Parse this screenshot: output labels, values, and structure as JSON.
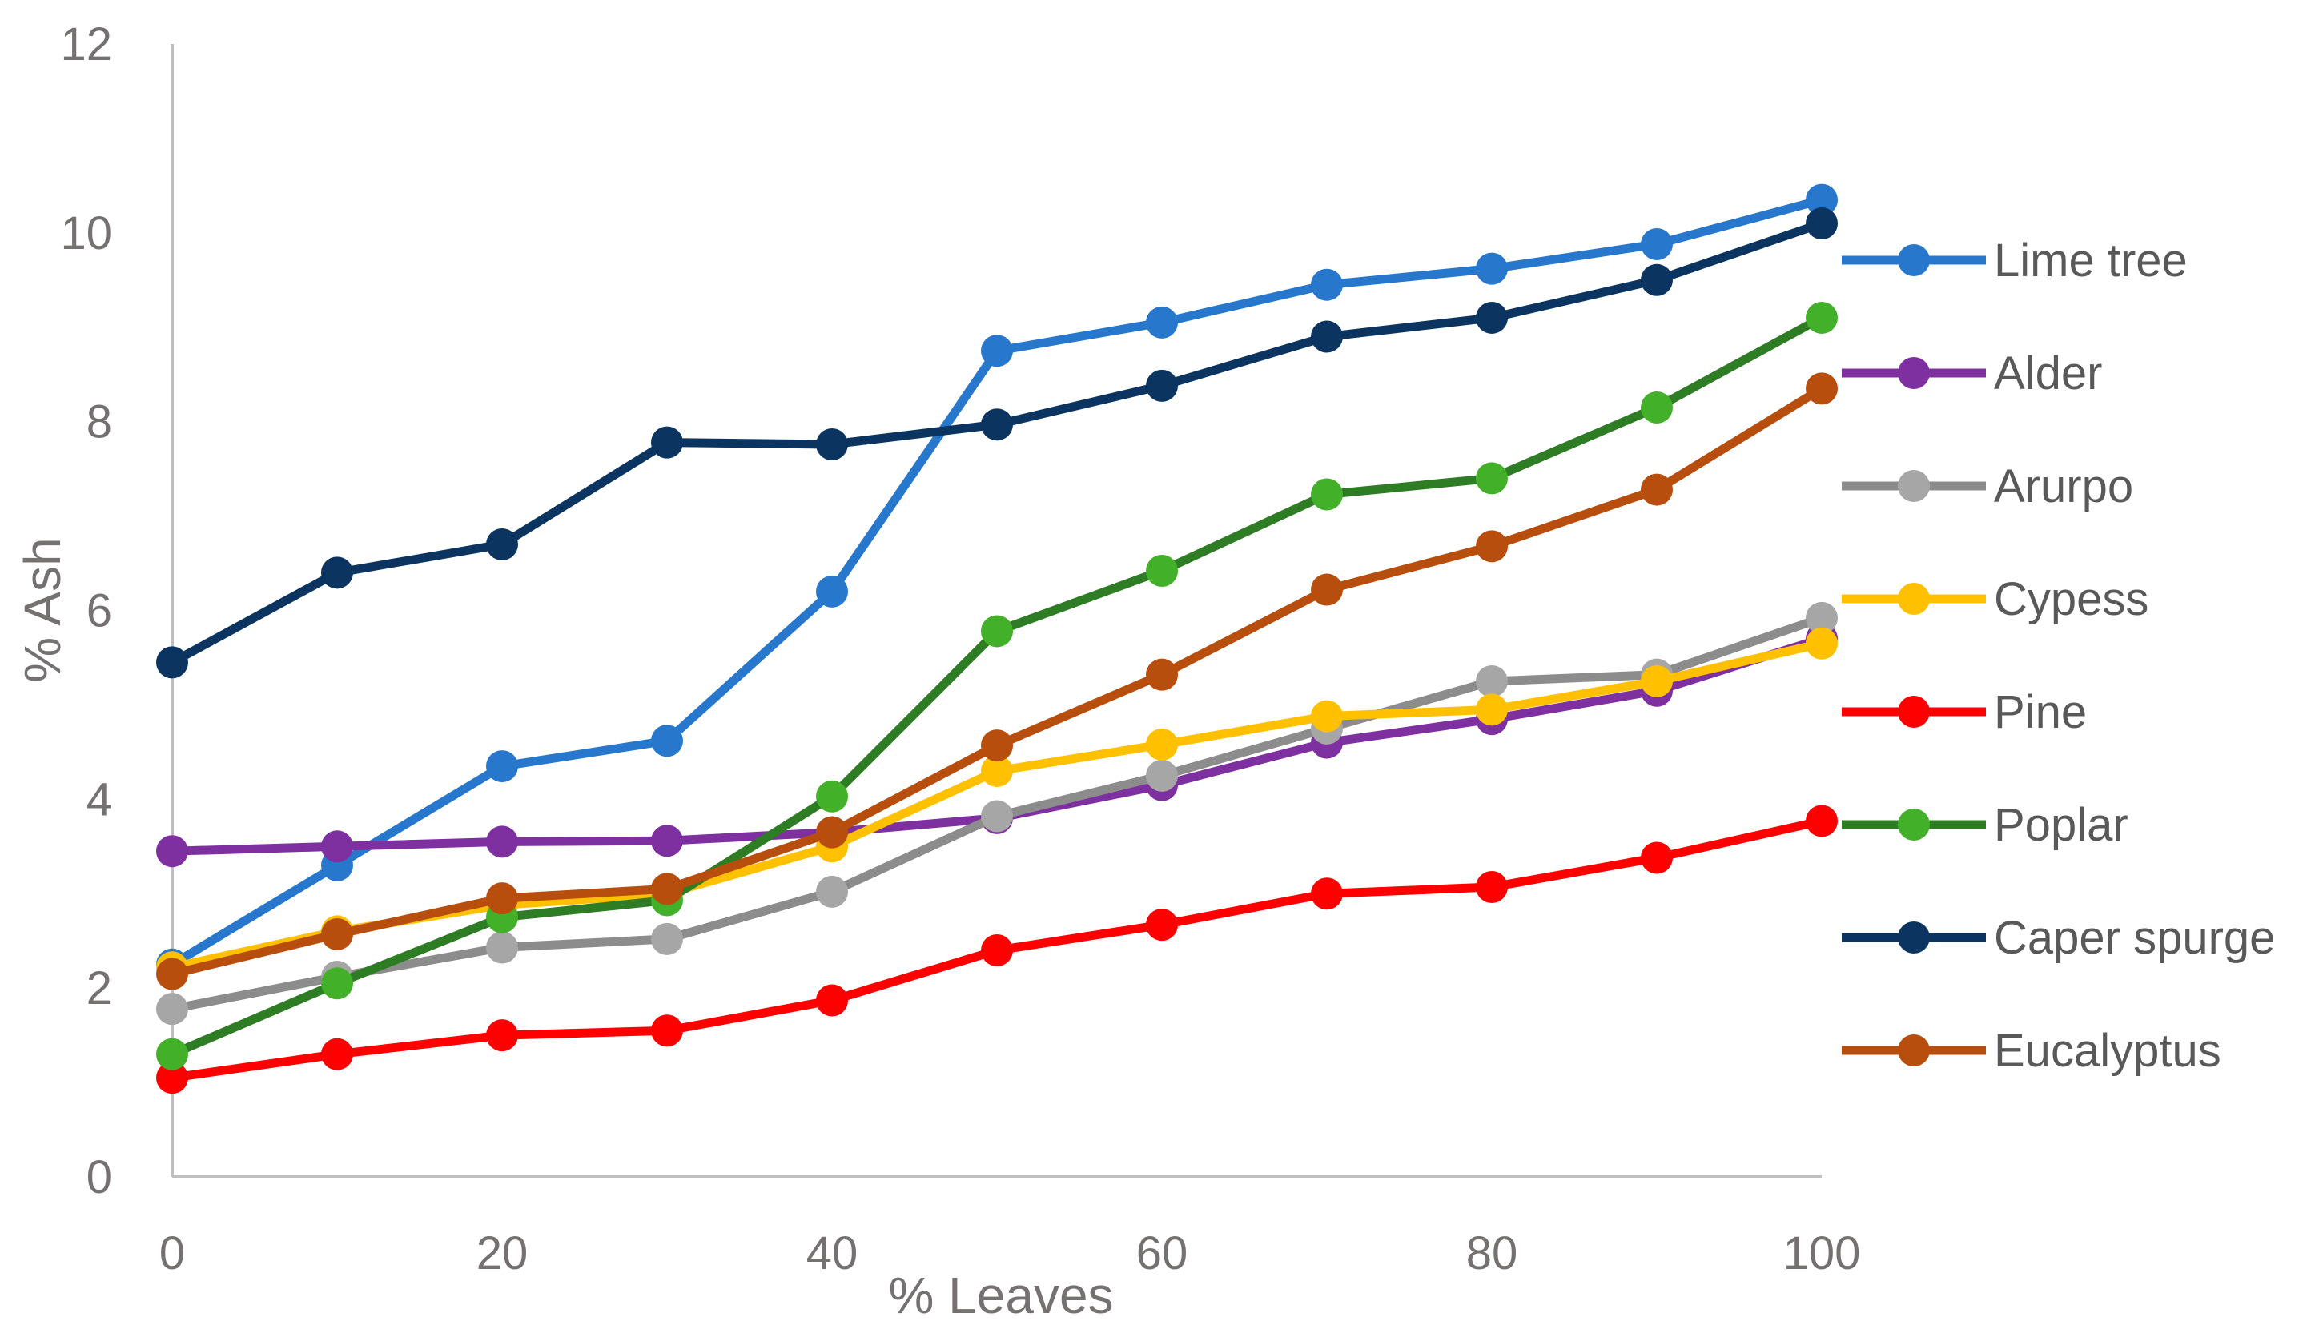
{
  "chart_data": {
    "type": "line",
    "xlabel": "% Leaves",
    "ylabel": "% Ash",
    "x": [
      0,
      10,
      20,
      30,
      40,
      50,
      60,
      70,
      80,
      90,
      100
    ],
    "xticks": [
      "0",
      "20",
      "40",
      "60",
      "80",
      "100"
    ],
    "xtick_values": [
      0,
      20,
      40,
      60,
      80,
      100
    ],
    "yticks": [
      "0",
      "2",
      "4",
      "6",
      "8",
      "10",
      "12"
    ],
    "ytick_values": [
      0,
      2,
      4,
      6,
      8,
      10,
      12
    ],
    "xlim": [
      0,
      100
    ],
    "ylim": [
      0,
      12
    ],
    "grid": false,
    "legend_position": "right",
    "series": [
      {
        "name": "Lime tree",
        "color": "#2778CC",
        "values": [
          2.25,
          3.3,
          4.35,
          4.62,
          6.2,
          8.75,
          9.05,
          9.45,
          9.62,
          9.88,
          10.35
        ]
      },
      {
        "name": "Alder",
        "color": "#7E2FA0",
        "values": [
          3.45,
          3.5,
          3.55,
          3.56,
          3.65,
          3.8,
          4.15,
          4.6,
          4.85,
          5.15,
          5.7
        ]
      },
      {
        "name": "Arurpo",
        "color": "#8C8C8C",
        "marker_color": "#A6A6A6",
        "values": [
          1.78,
          2.12,
          2.43,
          2.52,
          3.02,
          3.82,
          4.25,
          4.75,
          5.25,
          5.32,
          5.92
        ]
      },
      {
        "name": "Cypess",
        "color": "#FFC000",
        "values": [
          2.22,
          2.6,
          2.88,
          3.0,
          3.5,
          4.3,
          4.58,
          4.88,
          4.95,
          5.25,
          5.65
        ]
      },
      {
        "name": "Pine",
        "color": "#FF0000",
        "values": [
          1.05,
          1.3,
          1.5,
          1.55,
          1.87,
          2.4,
          2.67,
          3.0,
          3.07,
          3.38,
          3.77
        ]
      },
      {
        "name": "Poplar",
        "color": "#2E7D24",
        "marker_color": "#43B02A",
        "values": [
          1.3,
          2.05,
          2.75,
          2.93,
          4.03,
          5.78,
          6.42,
          7.23,
          7.4,
          8.15,
          9.1
        ]
      },
      {
        "name": "Caper spurge",
        "color": "#0B3560",
        "values": [
          5.45,
          6.4,
          6.7,
          7.78,
          7.76,
          7.97,
          8.38,
          8.9,
          9.1,
          9.5,
          10.1
        ]
      },
      {
        "name": "Eucalyptus",
        "color": "#B84E0E",
        "values": [
          2.15,
          2.57,
          2.95,
          3.05,
          3.65,
          4.57,
          5.32,
          6.22,
          6.68,
          7.28,
          8.35
        ]
      }
    ]
  }
}
